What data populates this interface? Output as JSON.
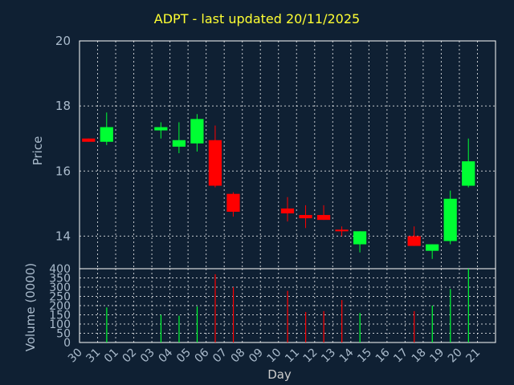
{
  "title": "ADPT - last updated 20/11/2025",
  "colors": {
    "background": "#0f2033",
    "up": "#00ff33",
    "down": "#ff0000",
    "grid": "#ffffff",
    "text": "#aabbcc",
    "title": "#ffff33"
  },
  "chart_data": [
    {
      "type": "candlestick",
      "ylabel": "Price",
      "ylim": [
        13,
        20
      ],
      "yticks": [
        14,
        16,
        18,
        20
      ],
      "grid": true,
      "x": [
        "30",
        "31",
        "01",
        "02",
        "03",
        "04",
        "05",
        "06",
        "07",
        "08",
        "09",
        "10",
        "11",
        "12",
        "13",
        "14",
        "15",
        "16",
        "17",
        "18",
        "19",
        "20",
        "21"
      ],
      "candles": [
        {
          "x": "30",
          "open": 17.0,
          "high": 17.0,
          "low": 16.9,
          "close": 16.9
        },
        {
          "x": "31",
          "open": 16.9,
          "high": 17.8,
          "low": 16.8,
          "close": 17.35
        },
        {
          "x": "03",
          "open": 17.25,
          "high": 17.5,
          "low": 17.0,
          "close": 17.35
        },
        {
          "x": "04",
          "open": 16.75,
          "high": 17.5,
          "low": 16.55,
          "close": 16.95
        },
        {
          "x": "05",
          "open": 16.85,
          "high": 17.75,
          "low": 16.6,
          "close": 17.6
        },
        {
          "x": "06",
          "open": 16.95,
          "high": 17.4,
          "low": 15.5,
          "close": 15.55
        },
        {
          "x": "07",
          "open": 15.3,
          "high": 15.35,
          "low": 14.6,
          "close": 14.75
        },
        {
          "x": "10",
          "open": 14.85,
          "high": 15.2,
          "low": 14.45,
          "close": 14.7
        },
        {
          "x": "11",
          "open": 14.65,
          "high": 14.95,
          "low": 14.25,
          "close": 14.55
        },
        {
          "x": "12",
          "open": 14.65,
          "high": 14.95,
          "low": 14.5,
          "close": 14.5
        },
        {
          "x": "13",
          "open": 14.2,
          "high": 14.3,
          "low": 14.0,
          "close": 14.15
        },
        {
          "x": "14",
          "open": 13.75,
          "high": 14.15,
          "low": 13.5,
          "close": 14.15
        },
        {
          "x": "17",
          "open": 14.0,
          "high": 14.3,
          "low": 13.7,
          "close": 13.7
        },
        {
          "x": "18",
          "open": 13.55,
          "high": 13.75,
          "low": 13.3,
          "close": 13.75
        },
        {
          "x": "19",
          "open": 13.85,
          "high": 15.4,
          "low": 13.75,
          "close": 15.15
        },
        {
          "x": "20",
          "open": 15.55,
          "high": 17.0,
          "low": 15.5,
          "close": 16.3
        }
      ]
    },
    {
      "type": "bar",
      "ylabel": "Volume (0000)",
      "xlabel": "Day",
      "ylim": [
        0,
        400
      ],
      "yticks": [
        0,
        50,
        100,
        150,
        200,
        250,
        300,
        350,
        400
      ],
      "grid": true,
      "x": [
        "30",
        "31",
        "01",
        "02",
        "03",
        "04",
        "05",
        "06",
        "07",
        "08",
        "09",
        "10",
        "11",
        "12",
        "13",
        "14",
        "15",
        "16",
        "17",
        "18",
        "19",
        "20",
        "21"
      ],
      "bars": [
        {
          "x": "30",
          "value": 0,
          "up": false
        },
        {
          "x": "31",
          "value": 190,
          "up": true
        },
        {
          "x": "03",
          "value": 150,
          "up": true
        },
        {
          "x": "04",
          "value": 145,
          "up": true
        },
        {
          "x": "05",
          "value": 195,
          "up": true
        },
        {
          "x": "06",
          "value": 370,
          "up": false
        },
        {
          "x": "07",
          "value": 300,
          "up": false
        },
        {
          "x": "10",
          "value": 280,
          "up": false
        },
        {
          "x": "11",
          "value": 165,
          "up": false
        },
        {
          "x": "12",
          "value": 170,
          "up": false
        },
        {
          "x": "13",
          "value": 230,
          "up": false
        },
        {
          "x": "14",
          "value": 160,
          "up": true
        },
        {
          "x": "17",
          "value": 170,
          "up": false
        },
        {
          "x": "18",
          "value": 200,
          "up": true
        },
        {
          "x": "19",
          "value": 290,
          "up": true
        },
        {
          "x": "20",
          "value": 400,
          "up": true
        }
      ]
    }
  ]
}
